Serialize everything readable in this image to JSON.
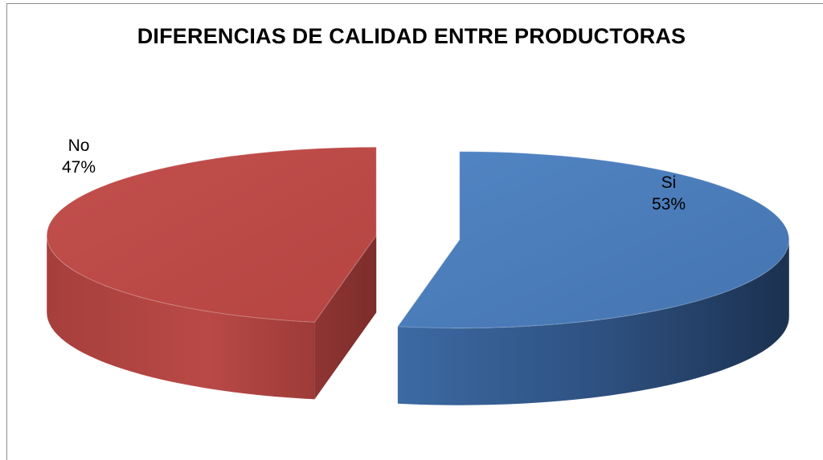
{
  "chart_data": {
    "type": "pie",
    "style": "3d-exploded",
    "title": "DIFERENCIAS DE CALIDAD ENTRE PRODUCTORAS",
    "categories": [
      "Si",
      "No"
    ],
    "values": [
      53,
      47
    ],
    "value_labels": [
      "53%",
      "47%"
    ],
    "colors": {
      "Si": "#4a7ebb",
      "No": "#be4b48"
    },
    "legend": "none"
  }
}
